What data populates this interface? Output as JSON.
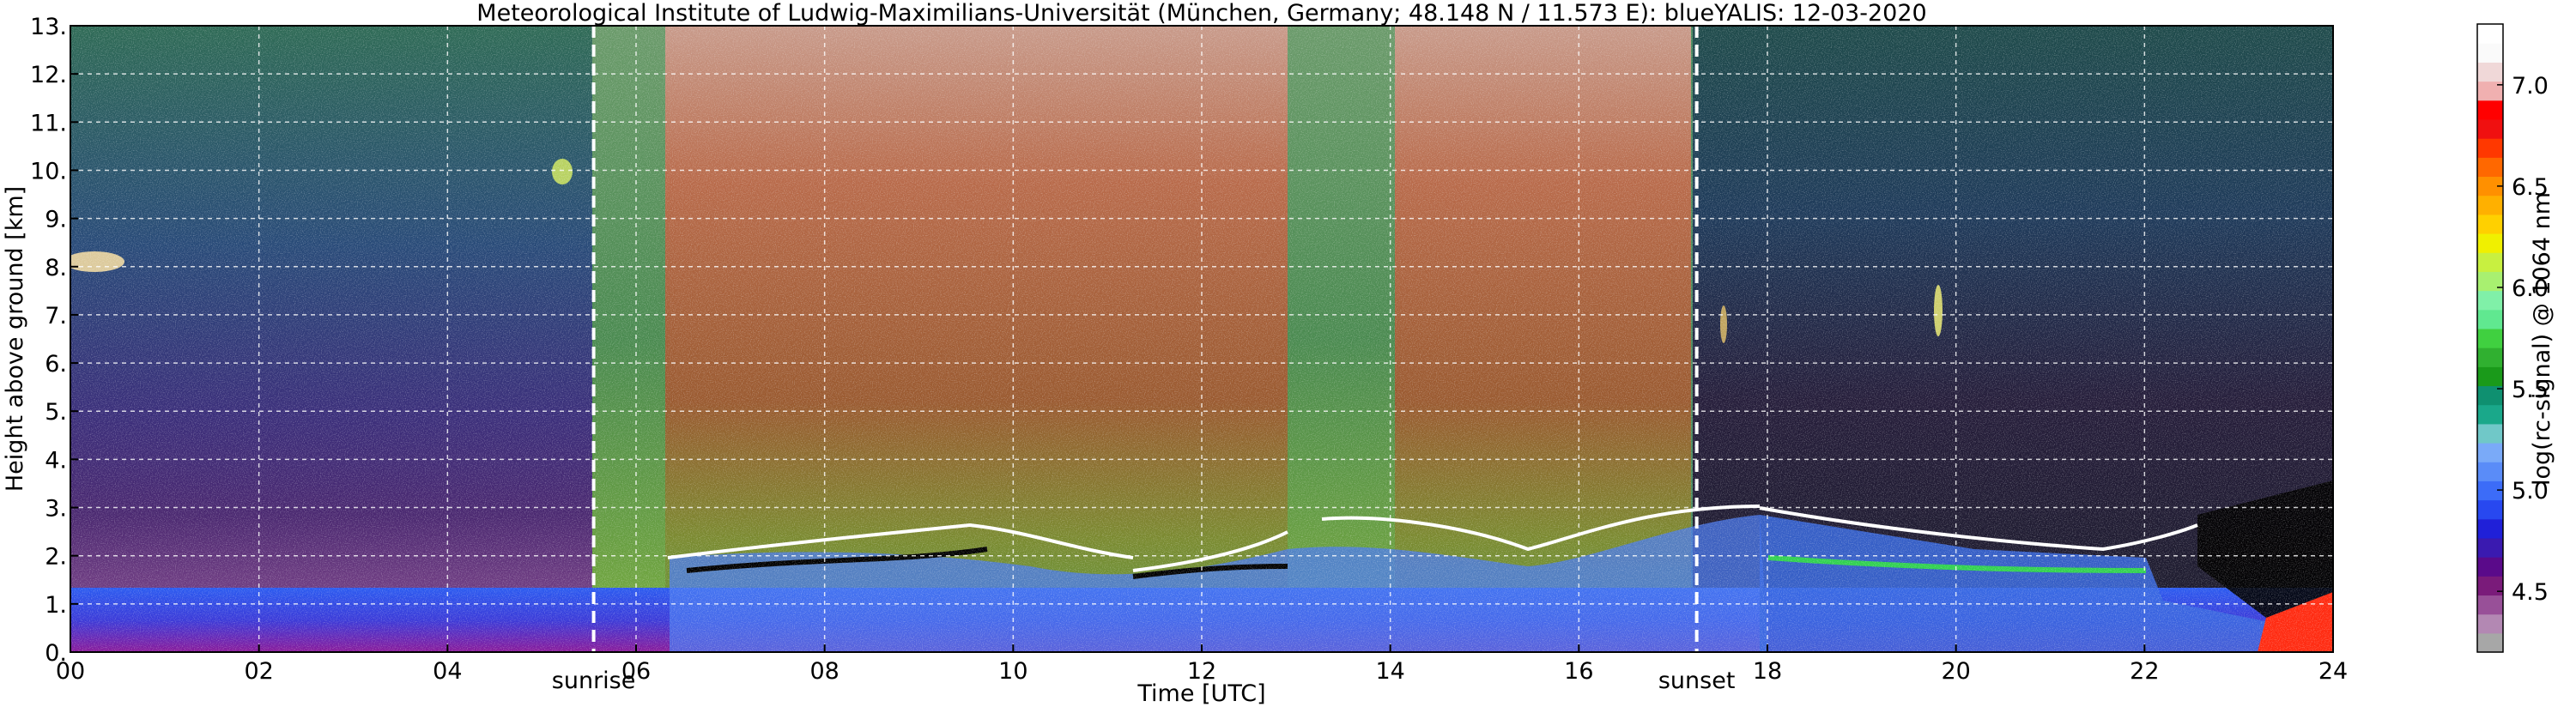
{
  "chart_data": {
    "type": "heatmap",
    "title": "Meteorological Institute of Ludwig-Maximilians-Universität (München, Germany; 48.148 N / 11.573 E):     blueYALIS: 12-03-2020",
    "xlabel": "Time [UTC]",
    "ylabel": "Height above ground [km]",
    "colorbar_label": "log(rc-signal) @ 1064 nm",
    "xlim": [
      0,
      24
    ],
    "ylim": [
      0,
      13
    ],
    "x_ticks": [
      {
        "value": 0,
        "label": "00"
      },
      {
        "value": 2,
        "label": "02"
      },
      {
        "value": 4,
        "label": "04"
      },
      {
        "value": 6,
        "label": "06"
      },
      {
        "value": 8,
        "label": "08"
      },
      {
        "value": 10,
        "label": "10"
      },
      {
        "value": 12,
        "label": "12"
      },
      {
        "value": 14,
        "label": "14"
      },
      {
        "value": 16,
        "label": "16"
      },
      {
        "value": 18,
        "label": "18"
      },
      {
        "value": 20,
        "label": "20"
      },
      {
        "value": 22,
        "label": "22"
      },
      {
        "value": 24,
        "label": "24"
      }
    ],
    "y_ticks": [
      {
        "value": 0,
        "label": "0."
      },
      {
        "value": 1,
        "label": "1."
      },
      {
        "value": 2,
        "label": "2."
      },
      {
        "value": 3,
        "label": "3."
      },
      {
        "value": 4,
        "label": "4."
      },
      {
        "value": 5,
        "label": "5."
      },
      {
        "value": 6,
        "label": "6."
      },
      {
        "value": 7,
        "label": "7."
      },
      {
        "value": 8,
        "label": "8."
      },
      {
        "value": 9,
        "label": "9."
      },
      {
        "value": 10,
        "label": "10."
      },
      {
        "value": 11,
        "label": "11."
      },
      {
        "value": 12,
        "label": "12."
      },
      {
        "value": 13,
        "label": "13."
      }
    ],
    "grid": true,
    "annotations": [
      {
        "label": "sunrise",
        "x": 5.55
      },
      {
        "label": "sunset",
        "x": 17.25
      }
    ],
    "colorbar": {
      "range": [
        4.2,
        7.3
      ],
      "ticks": [
        {
          "value": 4.5,
          "label": "4.5"
        },
        {
          "value": 5.0,
          "label": "5.0"
        },
        {
          "value": 5.5,
          "label": "5.5"
        },
        {
          "value": 6.0,
          "label": "6.0"
        },
        {
          "value": 6.5,
          "label": "6.5"
        },
        {
          "value": 7.0,
          "label": "7.0"
        }
      ],
      "colors": [
        "#a7a7a7",
        "#b388b3",
        "#985098",
        "#7a1b7a",
        "#5a0a8a",
        "#3a1ab0",
        "#2020d8",
        "#2848f0",
        "#3c6cf8",
        "#5a8cf8",
        "#7aaaf8",
        "#70c8c8",
        "#1aa88a",
        "#0f9070",
        "#1a9a1a",
        "#30b030",
        "#40d040",
        "#60e890",
        "#80f0a8",
        "#a8f070",
        "#c8f040",
        "#f0f000",
        "#ffd000",
        "#ffb000",
        "#ff9000",
        "#ff6800",
        "#ff3800",
        "#f01010",
        "#ff0000",
        "#f0b0b0",
        "#f0d8d8",
        "#fafafa",
        "#ffffff"
      ]
    }
  }
}
